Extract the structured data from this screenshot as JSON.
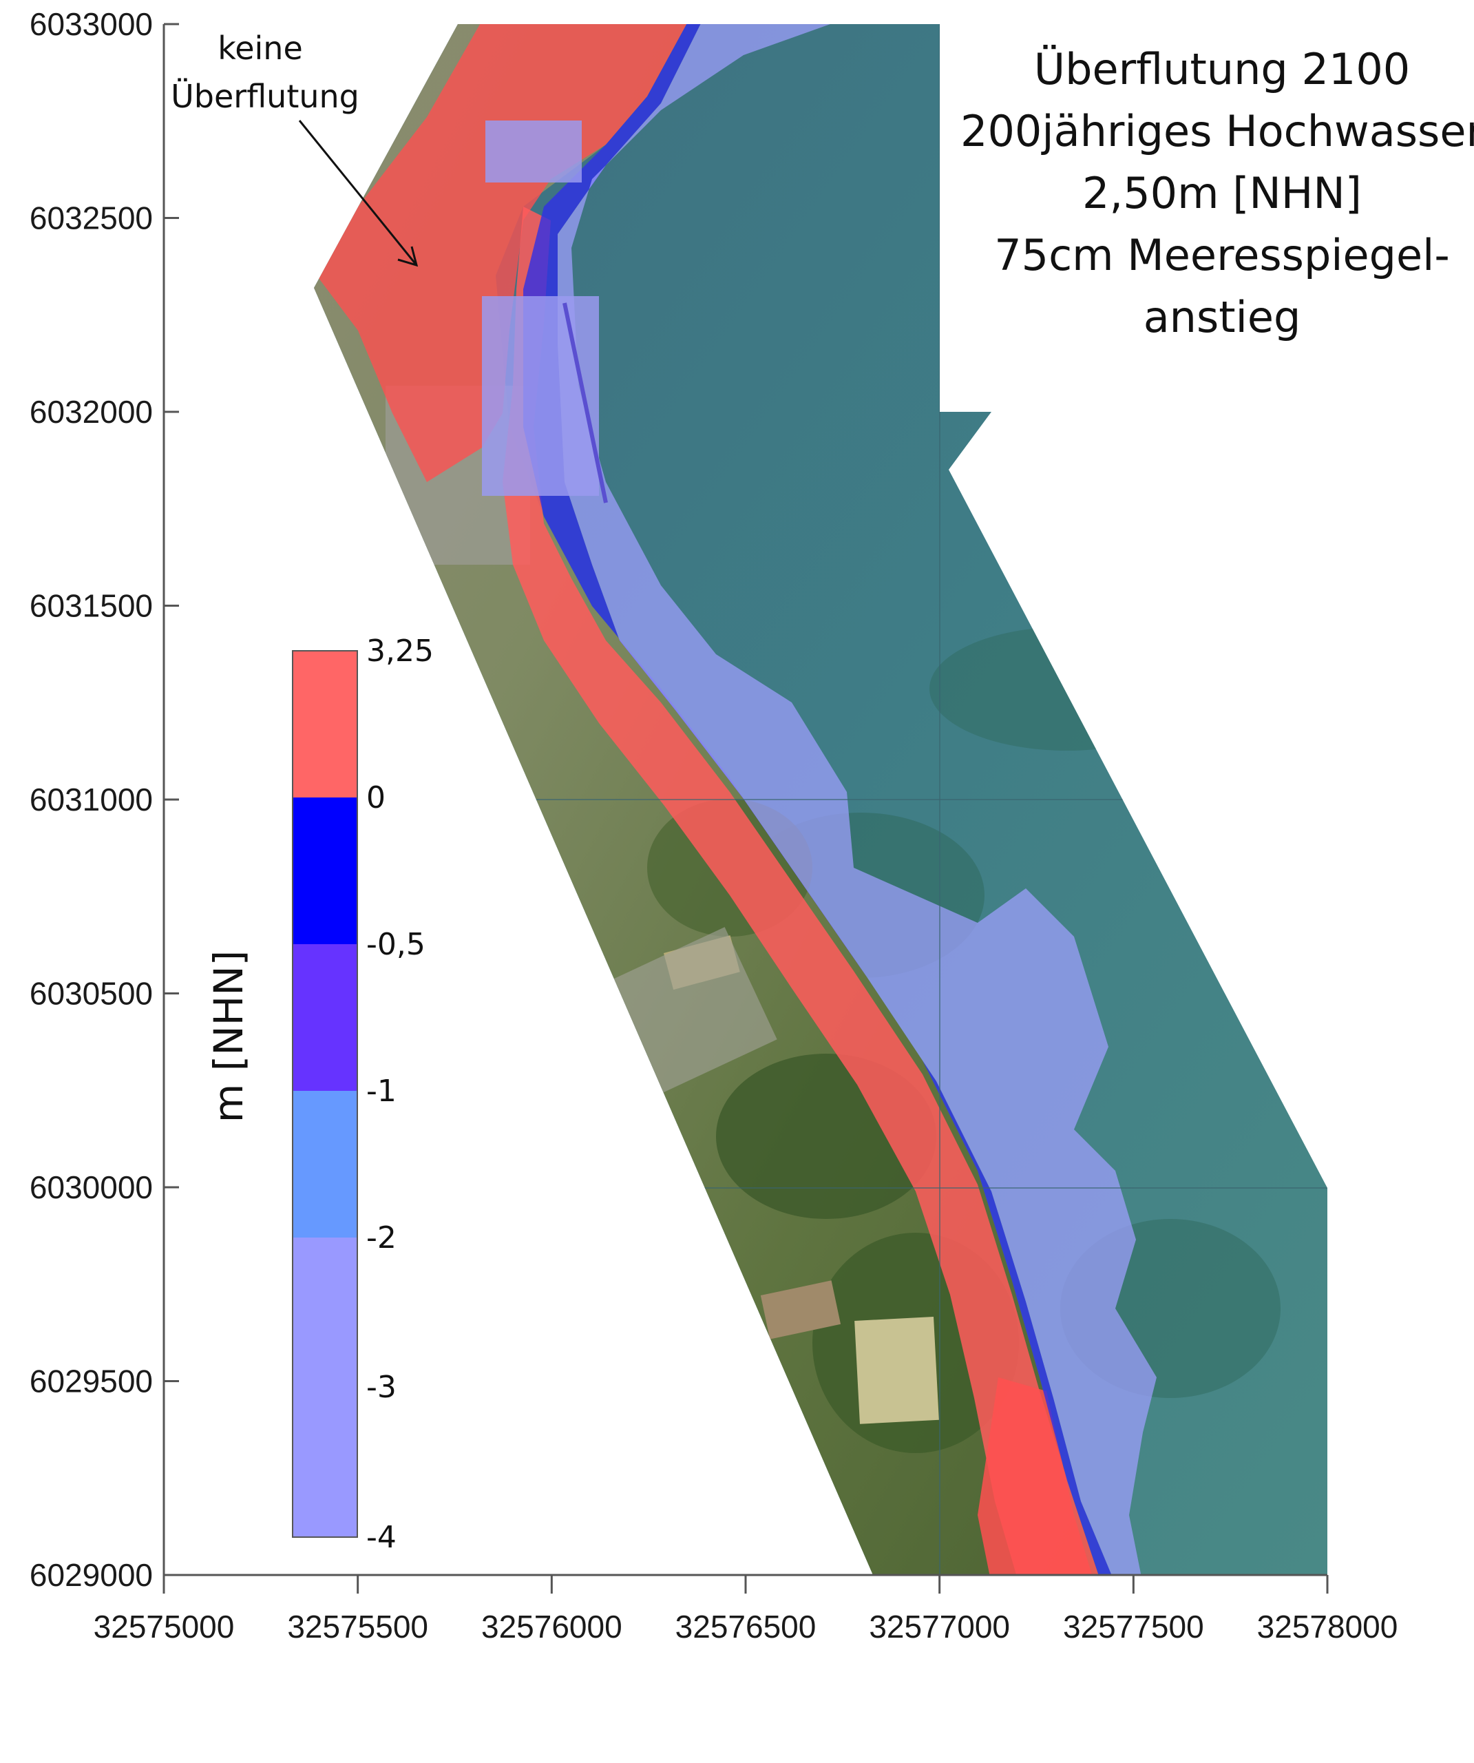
{
  "title_lines": [
    "Überflutung 2100",
    "200jähriges Hochwasser",
    "2,50m [NHN]",
    "75cm Meeresspiegel-",
    "anstieg"
  ],
  "annotation": {
    "lines": [
      "keine",
      "Überflutung"
    ]
  },
  "axes": {
    "x_ticks": [
      "32575000",
      "32575500",
      "32576000",
      "32576500",
      "32577000",
      "32577500",
      "32578000"
    ],
    "y_ticks": [
      "6033000",
      "6032500",
      "6032000",
      "6031500",
      "6031000",
      "6030500",
      "6030000",
      "6029500",
      "6029000"
    ],
    "x_range": [
      32575000,
      32578000
    ],
    "y_range": [
      6029000,
      6033000
    ]
  },
  "legend": {
    "title": "m [NHN]",
    "bins": [
      {
        "from": "0",
        "to": "3,25",
        "color": "#ff6666"
      },
      {
        "from": "-0,5",
        "to": "0",
        "color": "#0000ff"
      },
      {
        "from": "-1",
        "to": "-0,5",
        "color": "#6633ff"
      },
      {
        "from": "-2",
        "to": "-1",
        "color": "#6699ff"
      },
      {
        "from": "-4",
        "to": "-2",
        "color": "#9999ff"
      }
    ],
    "labels": [
      "3,25",
      "0",
      "-0,5",
      "-1",
      "-2",
      "-3",
      "-4"
    ]
  },
  "colors": {
    "water": "#3f7f8a",
    "land": "#6f7f45",
    "flood_red": "#ff5c5c",
    "shallow_blue": "#9b9bf2",
    "deep_blue": "#3a3ae0"
  }
}
